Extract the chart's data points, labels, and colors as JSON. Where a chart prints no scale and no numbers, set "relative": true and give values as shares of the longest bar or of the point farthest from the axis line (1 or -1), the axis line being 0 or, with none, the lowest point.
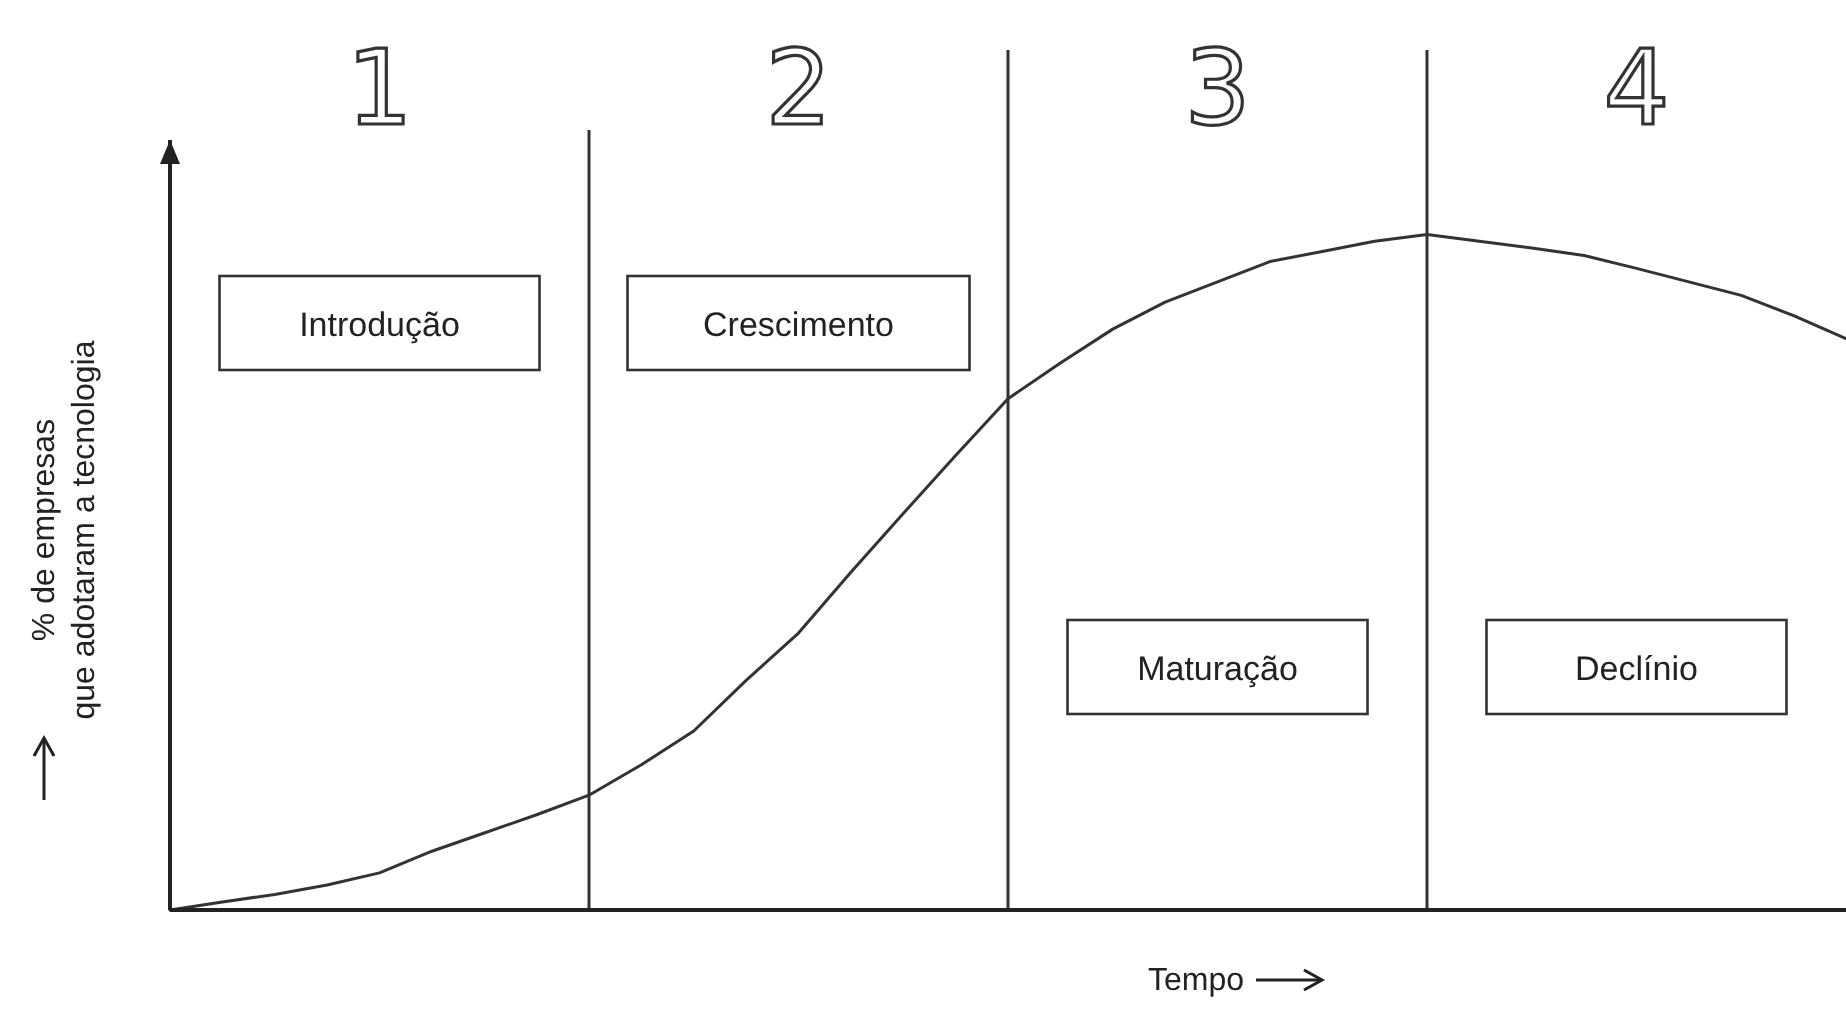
{
  "chart_data": {
    "type": "line",
    "relative": true,
    "ylabel": "% de empresas que adotaram a tecnologia",
    "xlabel": "Tempo",
    "categories": [
      null,
      null,
      null,
      null,
      null,
      null,
      null,
      null,
      null,
      null,
      null,
      null,
      null,
      null,
      null,
      null,
      null,
      null,
      null,
      null,
      null,
      null,
      null,
      null,
      null,
      null,
      null,
      null,
      null,
      null,
      null,
      null,
      null
    ],
    "line_style": "solid",
    "series": [
      {
        "color": "#333333",
        "values": [
          0,
          0.012,
          0.023,
          0.037,
          0.055,
          0.087,
          0.114,
          0.141,
          0.17,
          0.215,
          0.265,
          0.34,
          0.41,
          0.5,
          0.587,
          0.673,
          0.757,
          0.81,
          0.86,
          0.9,
          0.93,
          0.96,
          0.975,
          0.99,
          1,
          0.99,
          0.98,
          0.969,
          0.95,
          0.93,
          0.91,
          0.88,
          0.846
        ]
      }
    ],
    "grid": "x",
    "annotations": [
      "1",
      "2",
      "3",
      "4",
      "Introdução",
      "Crescimento",
      "Maturação",
      "Declínio"
    ]
  }
}
